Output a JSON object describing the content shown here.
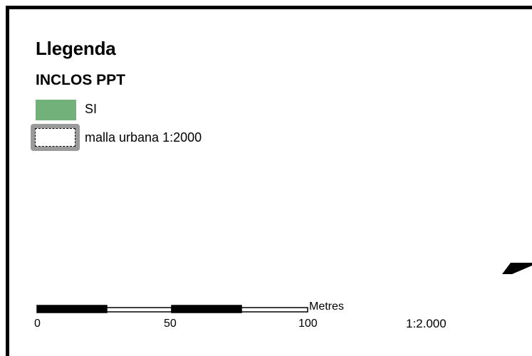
{
  "legend": {
    "title": "Llegenda",
    "layer_title": "INCLOS PPT",
    "items": [
      {
        "label": "SI",
        "symbol": "green-fill",
        "color": "#72b27a"
      },
      {
        "label": "malla urbana 1:2000",
        "symbol": "gray-outline-dashed",
        "color": "#9a9a9a"
      }
    ]
  },
  "scale_bar": {
    "ticks": [
      "0",
      "50",
      "100"
    ],
    "units": "Metres",
    "ratio": "1:2.000"
  },
  "colors": {
    "frame": "#000000",
    "background": "#ffffff"
  }
}
